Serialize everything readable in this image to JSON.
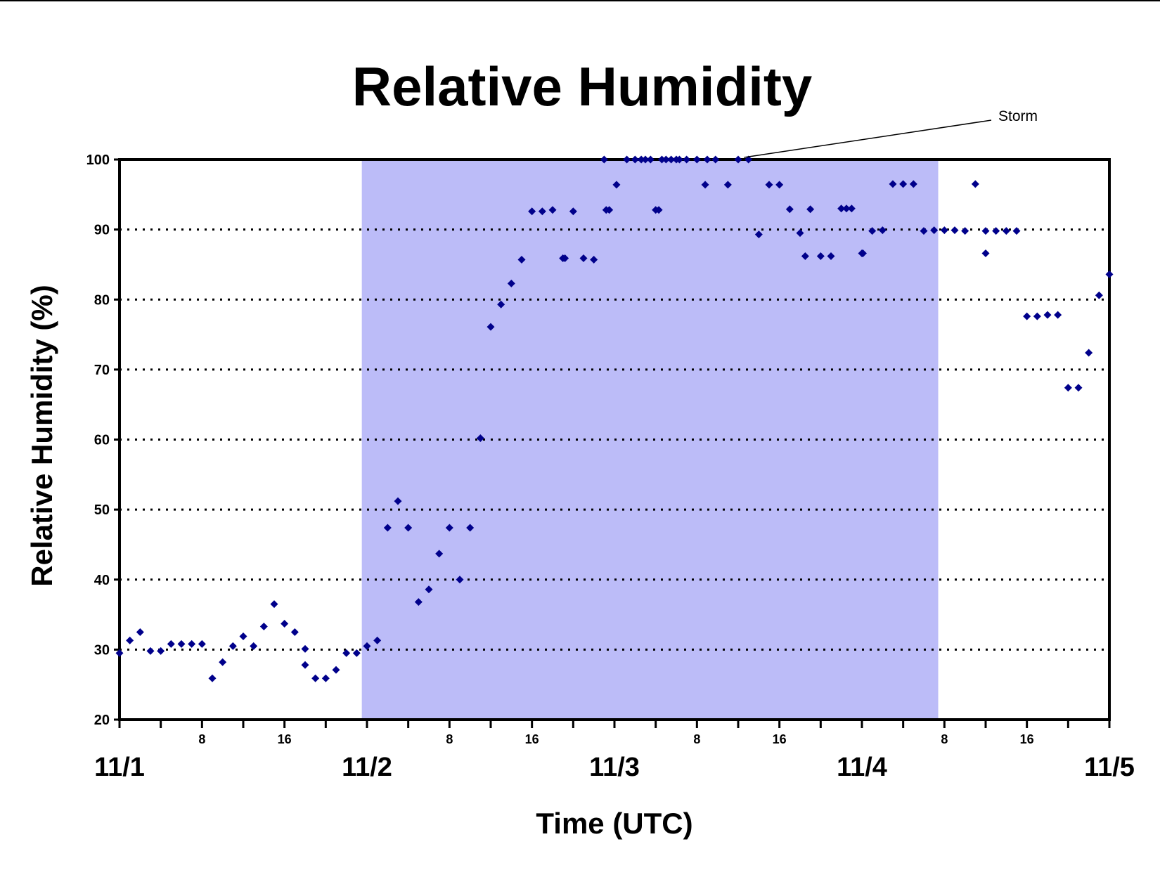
{
  "chart_data": {
    "type": "scatter",
    "title": "Relative Humidity",
    "xlabel": "Time (UTC)",
    "ylabel": "Relative Humidity (%)",
    "ylim": [
      20,
      100
    ],
    "yticks": [
      20,
      30,
      40,
      50,
      60,
      70,
      80,
      90,
      100
    ],
    "xlim_hours": [
      0,
      96
    ],
    "x_unit": "hours since 11/1 00:00 UTC",
    "date_labels": [
      {
        "label": "11/1",
        "hour": 0
      },
      {
        "label": "11/2",
        "hour": 24
      },
      {
        "label": "11/3",
        "hour": 48
      },
      {
        "label": "11/4",
        "hour": 72
      },
      {
        "label": "11/5",
        "hour": 96
      }
    ],
    "hour_labels": [
      {
        "label": "8",
        "hour": 8
      },
      {
        "label": "16",
        "hour": 16
      },
      {
        "label": "8",
        "hour": 32
      },
      {
        "label": "16",
        "hour": 40
      },
      {
        "label": "8",
        "hour": 56
      },
      {
        "label": "16",
        "hour": 64
      },
      {
        "label": "8",
        "hour": 80
      },
      {
        "label": "16",
        "hour": 88
      }
    ],
    "minor_tick_step_hours": 4,
    "grid": "horizontal dotted",
    "shaded_region": {
      "x_start": 23.5,
      "x_end": 79.4,
      "color": "#bcbcf8"
    },
    "marker_color": "#00008b",
    "annotation": {
      "text": "Storm",
      "x": 60.3,
      "y": 100
    },
    "series": [
      {
        "points": [
          [
            0,
            29.5
          ],
          [
            1,
            31.3
          ],
          [
            2,
            32.5
          ],
          [
            3,
            29.8
          ],
          [
            4,
            29.8
          ],
          [
            5,
            30.8
          ],
          [
            6,
            30.8
          ],
          [
            7,
            30.8
          ],
          [
            8,
            30.8
          ],
          [
            9,
            25.9
          ],
          [
            10,
            28.2
          ],
          [
            11,
            30.5
          ],
          [
            12,
            31.9
          ],
          [
            13,
            30.5
          ],
          [
            14,
            33.3
          ],
          [
            15,
            36.5
          ],
          [
            16,
            33.7
          ],
          [
            17,
            32.5
          ],
          [
            18,
            30.1
          ],
          [
            18,
            27.8
          ],
          [
            19,
            25.9
          ],
          [
            20,
            25.9
          ],
          [
            21,
            27.1
          ],
          [
            22,
            29.5
          ],
          [
            23,
            29.5
          ],
          [
            24,
            30.5
          ],
          [
            25,
            31.3
          ],
          [
            26,
            47.4
          ],
          [
            27,
            51.2
          ],
          [
            28,
            47.4
          ],
          [
            29,
            36.8
          ],
          [
            30,
            38.6
          ],
          [
            31,
            43.7
          ],
          [
            32,
            47.4
          ],
          [
            33,
            40.0
          ],
          [
            34,
            47.4
          ],
          [
            35,
            60.2
          ],
          [
            36,
            76.1
          ],
          [
            37,
            79.3
          ],
          [
            38,
            82.3
          ],
          [
            39,
            85.7
          ],
          [
            40,
            92.6
          ],
          [
            41,
            92.6
          ],
          [
            42,
            92.8
          ],
          [
            43,
            85.9
          ],
          [
            43.2,
            85.9
          ],
          [
            44,
            92.6
          ],
          [
            45,
            85.9
          ],
          [
            46,
            85.7
          ],
          [
            47,
            100
          ],
          [
            47.2,
            92.8
          ],
          [
            47.5,
            92.8
          ],
          [
            48.2,
            96.4
          ],
          [
            49.2,
            100
          ],
          [
            50,
            100
          ],
          [
            50.6,
            100
          ],
          [
            51,
            100
          ],
          [
            51.5,
            100
          ],
          [
            52,
            92.8
          ],
          [
            52.3,
            92.8
          ],
          [
            52.6,
            100
          ],
          [
            53,
            100
          ],
          [
            53.5,
            100
          ],
          [
            54,
            100
          ],
          [
            54.3,
            100
          ],
          [
            55,
            100
          ],
          [
            56,
            100
          ],
          [
            56.8,
            96.4
          ],
          [
            57,
            100
          ],
          [
            57.8,
            100
          ],
          [
            59,
            96.4
          ],
          [
            60,
            100
          ],
          [
            61,
            100
          ],
          [
            62,
            89.3
          ],
          [
            63,
            96.4
          ],
          [
            64,
            96.4
          ],
          [
            65,
            92.9
          ],
          [
            66,
            89.5
          ],
          [
            66.5,
            86.2
          ],
          [
            67,
            92.9
          ],
          [
            68,
            86.2
          ],
          [
            69,
            86.2
          ],
          [
            70,
            93.0
          ],
          [
            70.5,
            93.0
          ],
          [
            71,
            93.0
          ],
          [
            72,
            86.6
          ],
          [
            72.1,
            86.6
          ],
          [
            73,
            89.8
          ],
          [
            74,
            89.9
          ],
          [
            75,
            96.5
          ],
          [
            76,
            96.5
          ],
          [
            77,
            96.5
          ],
          [
            78,
            89.8
          ],
          [
            79,
            89.9
          ],
          [
            80,
            89.9
          ],
          [
            81,
            89.9
          ],
          [
            82,
            89.8
          ],
          [
            83,
            96.5
          ],
          [
            84,
            89.8
          ],
          [
            84,
            86.6
          ],
          [
            85,
            89.8
          ],
          [
            86,
            89.8
          ],
          [
            87,
            89.8
          ],
          [
            88,
            77.6
          ],
          [
            89,
            77.6
          ],
          [
            90,
            77.8
          ],
          [
            91,
            77.8
          ],
          [
            92,
            67.4
          ],
          [
            93,
            67.4
          ],
          [
            94,
            72.4
          ],
          [
            95,
            80.6
          ],
          [
            96,
            83.6
          ]
        ]
      }
    ]
  }
}
